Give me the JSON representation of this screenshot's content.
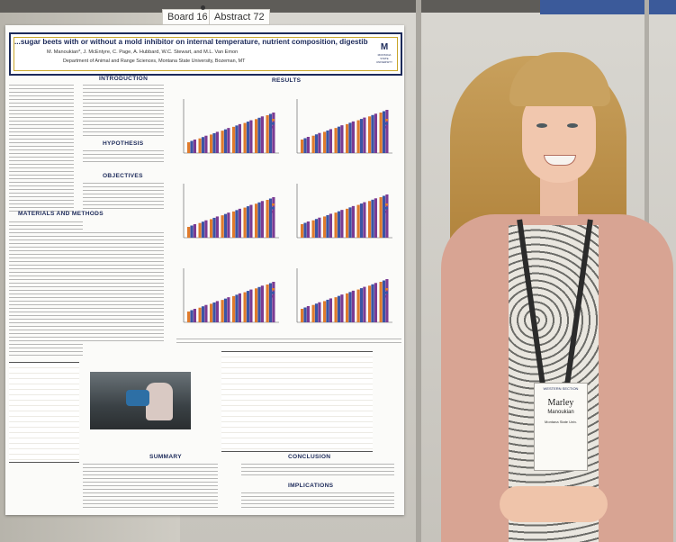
{
  "board_tags": {
    "board": "Board 16",
    "abstract": "Abstract 72"
  },
  "poster": {
    "title": "...sugar beets with or without a mold inhibitor on internal temperature, nutrient composition, digestibility, and pH",
    "authors": "M. Manoukian*, J. McEntyre, C. Page, A. Hubbard, W.C. Stewart, and M.L. Van Emon",
    "department": "Department of Animal and Range Sciences, Montana State University, Bozeman, MT",
    "logo_letter": "M",
    "logo_text": "MONTANA STATE UNIVERSITY",
    "sections": {
      "introduction": "INTRODUCTION",
      "results": "RESULTS",
      "hypothesis": "HYPOTHESIS",
      "objectives": "OBJECTIVES",
      "materials": "MATERIALS AND METHODS",
      "summary": "SUMMARY",
      "conclusion": "CONCLUSION",
      "implications": "IMPLICATIONS"
    }
  },
  "badge": {
    "event": "WESTERN SECTION",
    "first_name": "Marley",
    "last_name": "Manoukian",
    "school": "Montana State Univ."
  },
  "colors": {
    "poster_blue": "#1c2a5a",
    "poster_gold": "#c9a62a",
    "bar_orange": "#e07b2c",
    "bar_blue": "#3a55a5",
    "bar_purple": "#7b3b93"
  }
}
